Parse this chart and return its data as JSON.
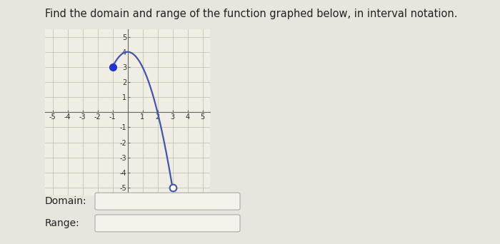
{
  "title": "Find the domain and range of the function graphed below, in interval notation.",
  "title_fontsize": 10.5,
  "title_color": "#222222",
  "xlim": [
    -5.5,
    5.5
  ],
  "ylim": [
    -5.5,
    5.5
  ],
  "xticks": [
    -5,
    -4,
    -3,
    -2,
    -1,
    1,
    2,
    3,
    4,
    5
  ],
  "yticks": [
    -5,
    -4,
    -3,
    -2,
    -1,
    1,
    2,
    3,
    4,
    5
  ],
  "curve_color": "#4455aa",
  "curve_linewidth": 1.6,
  "start_x": -1,
  "start_y": 3,
  "end_x": 3,
  "end_y": -5,
  "peak_x": 0.0,
  "peak_y": 4.0,
  "closed_dot_color": "#2233cc",
  "open_dot_color": "white",
  "open_dot_edge_color": "#4455aa",
  "dot_size": 7,
  "grid_color": "#bbbbaa",
  "grid_linewidth": 0.5,
  "fig_bg_color": "#e8e5de",
  "plot_bg_color": "#f0ede4",
  "domain_label": "Domain:",
  "range_label": "Range:",
  "label_fontsize": 10,
  "tick_fontsize": 7
}
